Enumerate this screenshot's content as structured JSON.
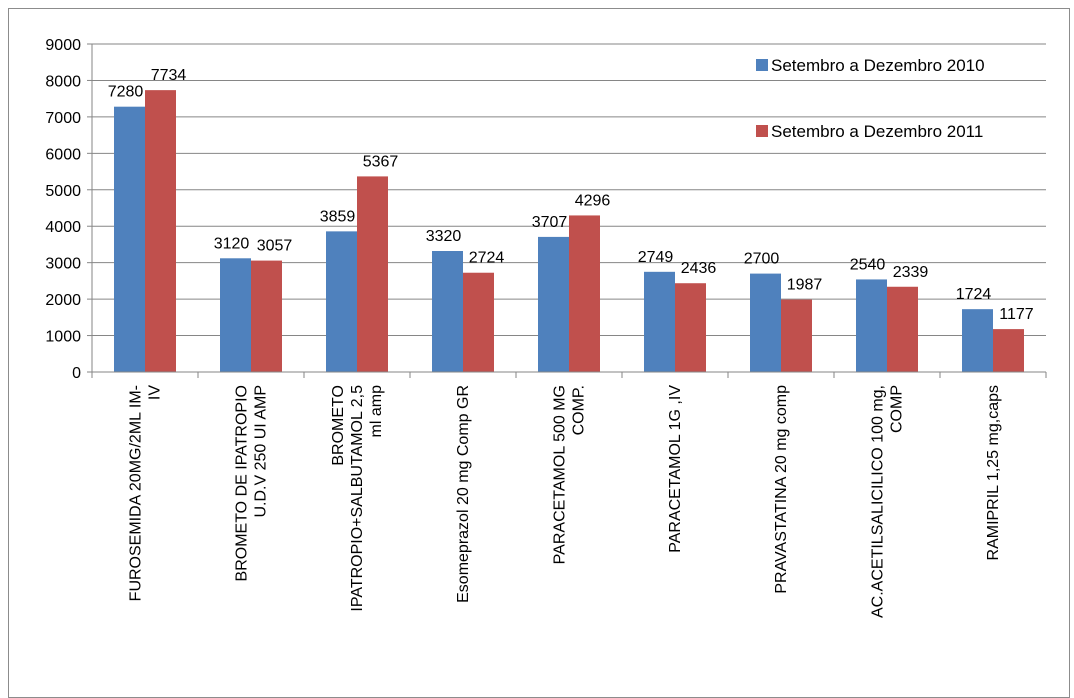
{
  "chart_data": {
    "type": "bar",
    "title": "",
    "xlabel": "",
    "ylabel": "",
    "ylim": [
      0,
      9000
    ],
    "yticks": [
      0,
      1000,
      2000,
      3000,
      4000,
      5000,
      6000,
      7000,
      8000,
      9000
    ],
    "grid": true,
    "legend_position": "top-right",
    "categories": [
      [
        "FUROSEMIDA 20MG/2ML IM-",
        "IV"
      ],
      [
        "BROMETO DE IPATROPIO",
        "U.D.V 250 UI AMP"
      ],
      [
        "BROMETO",
        "IPATROPIO+SALBUTAMOL   2,5",
        "ml amp"
      ],
      [
        "Esomeprazol 20 mg Comp GR"
      ],
      [
        "PARACETAMOL 500 MG",
        "COMP."
      ],
      [
        "PARACETAMOL 1G ,IV"
      ],
      [
        "PRAVASTATINA 20 mg comp"
      ],
      [
        "AC.ACETILSALICILICO 100 mg,",
        "COMP"
      ],
      [
        "RAMIPRIL 1,25 mg,caps"
      ]
    ],
    "series": [
      {
        "name": "Setembro a Dezembro 2010",
        "color": "#4f81bd",
        "values": [
          7280,
          3120,
          3859,
          3320,
          3707,
          2749,
          2700,
          2540,
          1724
        ]
      },
      {
        "name": "Setembro a Dezembro 2011",
        "color": "#c0504d",
        "values": [
          7734,
          3057,
          5367,
          2724,
          4296,
          2436,
          1987,
          2339,
          1177
        ]
      }
    ]
  }
}
